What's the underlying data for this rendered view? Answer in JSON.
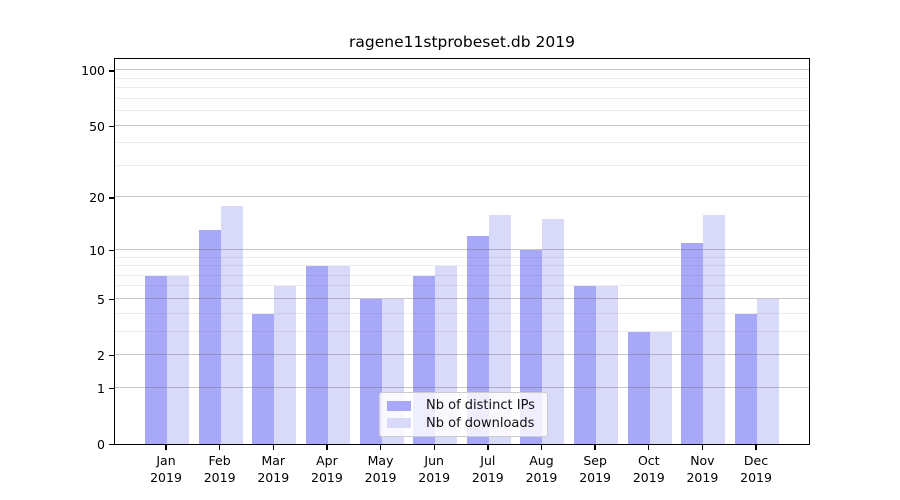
{
  "title": "ragene11stprobeset.db 2019",
  "chart_data": {
    "type": "bar",
    "title": "ragene11stprobeset.db 2019",
    "categories": [
      "Jan",
      "Feb",
      "Mar",
      "Apr",
      "May",
      "Jun",
      "Jul",
      "Aug",
      "Sep",
      "Oct",
      "Nov",
      "Dec"
    ],
    "year": "2019",
    "series": [
      {
        "name": "Nb of distinct IPs",
        "color": "#a8a8f9",
        "values": [
          7,
          13,
          4,
          8,
          5,
          7,
          12,
          10,
          6,
          3,
          11,
          4
        ]
      },
      {
        "name": "Nb of downloads",
        "color": "#d9d9fa",
        "values": [
          7,
          18,
          6,
          8,
          5,
          8,
          16,
          15,
          6,
          3,
          16,
          5
        ]
      }
    ],
    "yscale": "log10(value+1)",
    "ylim": [
      0,
      118
    ],
    "ymax_decades": 2.075,
    "yticks": [
      0,
      1,
      2,
      5,
      10,
      20,
      50,
      100
    ],
    "yminor_ticks": [
      3,
      4,
      6,
      7,
      8,
      9,
      30,
      40,
      60,
      70,
      80,
      90
    ],
    "grid": "on",
    "legend_position": "bottom-center",
    "xlabel": "",
    "ylabel": ""
  }
}
